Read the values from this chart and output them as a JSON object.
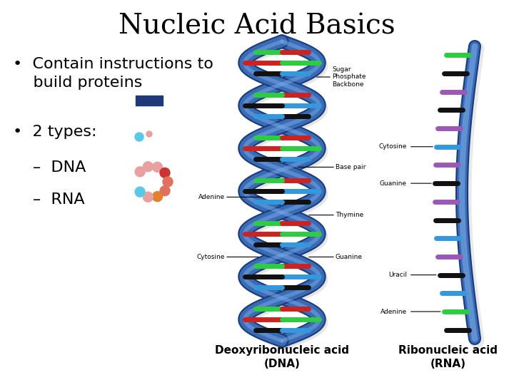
{
  "title": "Nucleic Acid Basics",
  "title_fontsize": 28,
  "title_color": "#000000",
  "title_font": "serif",
  "background_color": "#ffffff",
  "text_color": "#000000",
  "bullet_fontsize": 16,
  "sub_bullet_fontsize": 16,
  "dna_label": "Deoxyribonucleic acid\n(DNA)",
  "rna_label": "Ribonucleic acid\n(RNA)",
  "label_fontsize": 11,
  "annotation_fontsize": 6.5,
  "dna_color": "#3a6cb5",
  "dna_dark": "#1a3a7a",
  "dna_rect_color": "#1f3a7a",
  "base_adenine": "#2ecc40",
  "base_thymine": "#cc2222",
  "base_guanine": "#111111",
  "base_cytosine": "#3498db",
  "base_uracil": "#9b59b6",
  "rna_bead_pink": "#e8a0a0",
  "rna_bead_salmon": "#e07060",
  "rna_bead_orange": "#e08030",
  "rna_bead_blue": "#5bc8e8",
  "rna_bead_red": "#cc3333"
}
